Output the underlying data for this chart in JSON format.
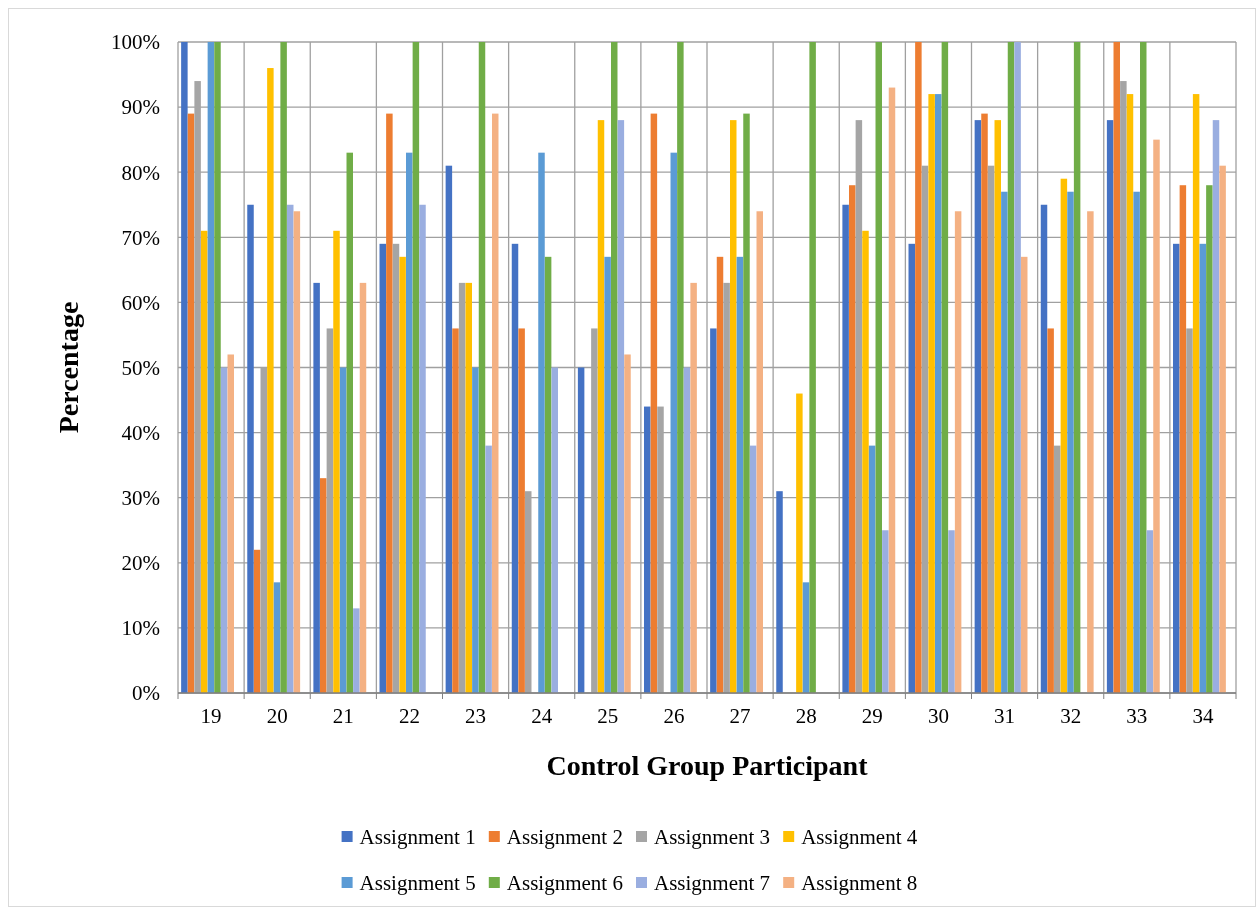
{
  "chart_data": {
    "type": "bar",
    "xlabel": "Control Group Participant",
    "ylabel": "Percentage",
    "categories": [
      "19",
      "20",
      "21",
      "22",
      "23",
      "24",
      "25",
      "26",
      "27",
      "28",
      "29",
      "30",
      "31",
      "32",
      "33",
      "34"
    ],
    "ylim": [
      0,
      100
    ],
    "yticks": [
      {
        "value": 0,
        "label": "0%"
      },
      {
        "value": 10,
        "label": "10%"
      },
      {
        "value": 20,
        "label": "20%"
      },
      {
        "value": 30,
        "label": "30%"
      },
      {
        "value": 40,
        "label": "40%"
      },
      {
        "value": 50,
        "label": "50%"
      },
      {
        "value": 60,
        "label": "60%"
      },
      {
        "value": 70,
        "label": "70%"
      },
      {
        "value": 80,
        "label": "80%"
      },
      {
        "value": 90,
        "label": "90%"
      },
      {
        "value": 100,
        "label": "100%"
      }
    ],
    "grid": true,
    "legend": "bottom",
    "series": [
      {
        "name": "Assignment 1",
        "color": "#4472c4",
        "values": [
          100,
          75,
          63,
          69,
          81,
          69,
          50,
          44,
          56,
          31,
          75,
          69,
          88,
          75,
          88,
          69
        ]
      },
      {
        "name": "Assignment 2",
        "color": "#ed7d31",
        "values": [
          89,
          22,
          33,
          89,
          56,
          56,
          null,
          89,
          67,
          null,
          78,
          100,
          89,
          56,
          100,
          78
        ]
      },
      {
        "name": "Assignment 3",
        "color": "#a5a5a5",
        "values": [
          94,
          50,
          56,
          69,
          63,
          31,
          56,
          44,
          63,
          null,
          88,
          81,
          81,
          38,
          94,
          56
        ]
      },
      {
        "name": "Assignment 4",
        "color": "#ffc000",
        "values": [
          71,
          96,
          71,
          67,
          63,
          null,
          88,
          null,
          88,
          46,
          71,
          92,
          88,
          79,
          92,
          92
        ]
      },
      {
        "name": "Assignment 5",
        "color": "#5b9bd5",
        "values": [
          100,
          17,
          50,
          83,
          50,
          83,
          67,
          83,
          67,
          17,
          38,
          92,
          77,
          77,
          77,
          69
        ]
      },
      {
        "name": "Assignment 6",
        "color": "#70ad47",
        "values": [
          100,
          100,
          83,
          100,
          100,
          67,
          100,
          100,
          89,
          100,
          100,
          100,
          100,
          100,
          100,
          78
        ]
      },
      {
        "name": "Assignment 7",
        "color": "#9aaee0",
        "values": [
          50,
          75,
          13,
          75,
          38,
          50,
          88,
          50,
          38,
          null,
          25,
          25,
          100,
          null,
          25,
          88
        ]
      },
      {
        "name": "Assignment 8",
        "color": "#f4b183",
        "values": [
          52,
          74,
          63,
          null,
          89,
          null,
          52,
          63,
          74,
          null,
          93,
          74,
          67,
          74,
          85,
          81
        ]
      }
    ]
  }
}
